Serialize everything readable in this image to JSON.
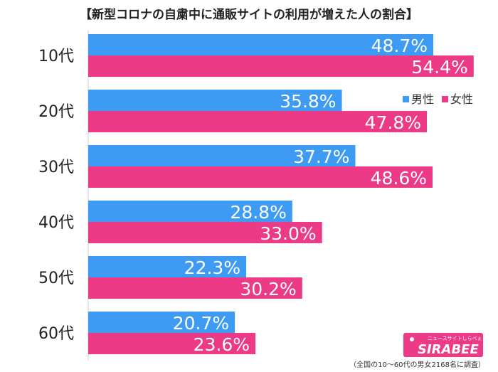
{
  "title": "【新型コロナの自粛中に通販サイトの利用が増えた人の割合】",
  "footnote": "（全国の10〜60代の男女2168名に調査）",
  "logo": {
    "main": "SIRABEE",
    "sub": "ニュースサイトしらべぇ"
  },
  "colors": {
    "male": "#3D9BF3",
    "female": "#EC3A87",
    "text": "#222222"
  },
  "chart_data": {
    "type": "bar",
    "orientation": "horizontal",
    "title": "【新型コロナの自粛中に通販サイトの利用が増えた人の割合】",
    "categories": [
      "10代",
      "20代",
      "30代",
      "40代",
      "50代",
      "60代"
    ],
    "series": [
      {
        "name": "男性",
        "values": [
          48.7,
          35.8,
          37.7,
          28.8,
          22.3,
          20.7
        ]
      },
      {
        "name": "女性",
        "values": [
          54.4,
          47.8,
          48.6,
          33.0,
          30.2,
          23.6
        ]
      }
    ],
    "unit": "%",
    "xlim": [
      0,
      100
    ],
    "legend": "top-right",
    "grid": false
  }
}
